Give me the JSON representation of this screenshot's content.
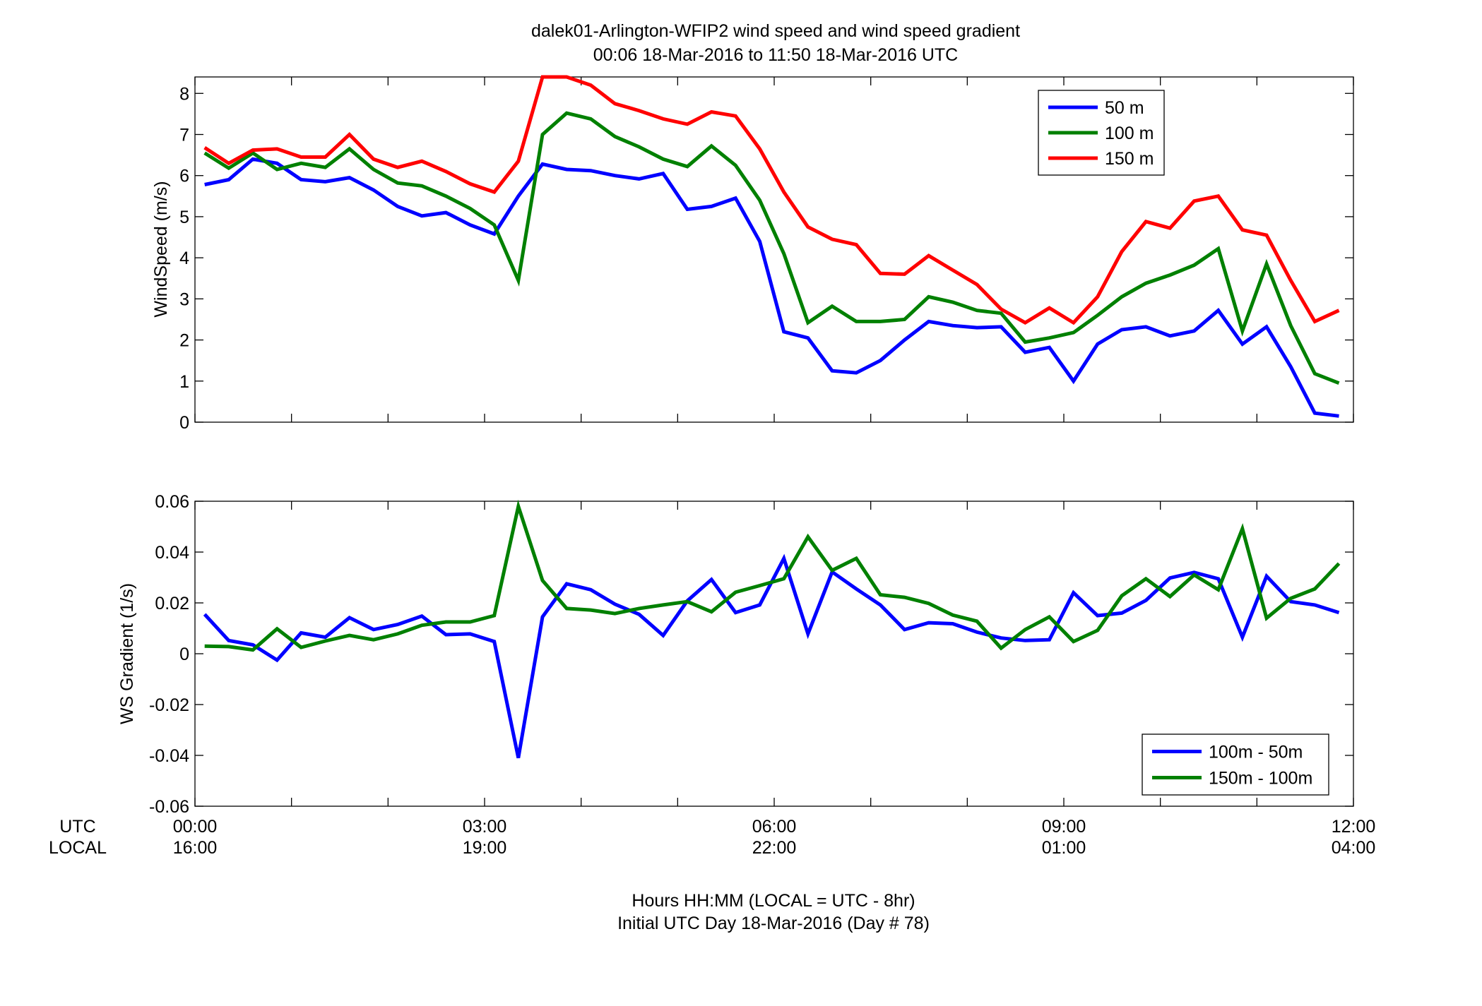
{
  "title_line1": "dalek01-Arlington-WFIP2  wind speed and wind speed gradient",
  "title_line2": "00:06 18-Mar-2016 to 11:50 18-Mar-2016  UTC",
  "row_label_utc": "UTC",
  "row_label_local": "LOCAL",
  "xlabel_line1": "Hours HH:MM  (LOCAL = UTC - 8hr)",
  "xlabel_line2": "Initial UTC Day 18-Mar-2016 (Day # 78)",
  "x_ticks": [
    {
      "hour": 0,
      "utc": "00:00",
      "local": "16:00"
    },
    {
      "hour": 3,
      "utc": "03:00",
      "local": "19:00"
    },
    {
      "hour": 6,
      "utc": "06:00",
      "local": "22:00"
    },
    {
      "hour": 9,
      "utc": "09:00",
      "local": "01:00"
    },
    {
      "hour": 12,
      "utc": "12:00",
      "local": "04:00"
    }
  ],
  "chart_data": [
    {
      "type": "line",
      "ylabel": "WindSpeed (m/s)",
      "xlim": [
        0,
        12
      ],
      "ylim": [
        0,
        8.4
      ],
      "y_ticks": [
        0,
        1,
        2,
        3,
        4,
        5,
        6,
        7,
        8
      ],
      "y_tick_labels": [
        "0",
        "1",
        "2",
        "3",
        "4",
        "5",
        "6",
        "7",
        "8"
      ],
      "legend_position": "top-right",
      "x": [
        0.1,
        0.35,
        0.6,
        0.85,
        1.1,
        1.35,
        1.6,
        1.85,
        2.1,
        2.35,
        2.6,
        2.85,
        3.1,
        3.35,
        3.6,
        3.85,
        4.1,
        4.35,
        4.6,
        4.85,
        5.1,
        5.35,
        5.6,
        5.85,
        6.1,
        6.35,
        6.6,
        6.85,
        7.1,
        7.35,
        7.6,
        7.85,
        8.1,
        8.35,
        8.6,
        8.85,
        9.1,
        9.35,
        9.6,
        9.85,
        10.1,
        10.35,
        10.6,
        10.85,
        11.1,
        11.35,
        11.6,
        11.85
      ],
      "series": [
        {
          "name": "50 m",
          "color": "#0000ff",
          "values": [
            5.78,
            5.9,
            6.4,
            6.3,
            5.9,
            5.85,
            5.95,
            5.65,
            5.25,
            5.02,
            5.1,
            4.8,
            4.58,
            5.5,
            6.28,
            6.15,
            6.12,
            6.0,
            5.92,
            6.05,
            5.18,
            5.25,
            5.45,
            4.4,
            2.2,
            2.05,
            1.25,
            1.2,
            1.5,
            2.0,
            2.45,
            2.35,
            2.3,
            2.32,
            1.7,
            1.82,
            1.0,
            1.9,
            2.25,
            2.32,
            2.1,
            2.22,
            2.72,
            1.9,
            2.32,
            1.35,
            0.22,
            0.15
          ]
        },
        {
          "name": "100 m",
          "color": "#008000",
          "values": [
            6.55,
            6.18,
            6.55,
            6.15,
            6.3,
            6.2,
            6.65,
            6.15,
            5.82,
            5.75,
            5.5,
            5.2,
            4.8,
            3.45,
            7.0,
            7.52,
            7.38,
            6.95,
            6.7,
            6.4,
            6.22,
            6.72,
            6.25,
            5.4,
            4.1,
            2.42,
            2.82,
            2.45,
            2.45,
            2.5,
            3.05,
            2.92,
            2.72,
            2.65,
            1.95,
            2.05,
            2.18,
            2.6,
            3.05,
            3.38,
            3.58,
            3.82,
            4.22,
            2.22,
            3.85,
            2.35,
            1.18,
            0.95
          ]
        },
        {
          "name": "150 m",
          "color": "#ff0000",
          "values": [
            6.68,
            6.3,
            6.62,
            6.65,
            6.45,
            6.45,
            7.0,
            6.4,
            6.2,
            6.35,
            6.1,
            5.8,
            5.6,
            6.35,
            8.4,
            8.4,
            8.2,
            7.75,
            7.58,
            7.38,
            7.25,
            7.55,
            7.45,
            6.65,
            5.6,
            4.75,
            4.45,
            4.32,
            3.62,
            3.6,
            4.05,
            3.7,
            3.35,
            2.75,
            2.42,
            2.78,
            2.42,
            3.05,
            4.15,
            4.88,
            4.72,
            5.38,
            5.5,
            4.68,
            4.55,
            3.45,
            2.45,
            2.72
          ]
        }
      ]
    },
    {
      "type": "line",
      "ylabel": "WS Gradient (1/s)",
      "xlim": [
        0,
        12
      ],
      "ylim": [
        -0.06,
        0.06
      ],
      "y_ticks": [
        -0.06,
        -0.04,
        -0.02,
        0,
        0.02,
        0.04,
        0.06
      ],
      "y_tick_labels": [
        "-0.06",
        "-0.04",
        "-0.02",
        "0",
        "0.02",
        "0.04",
        "0.06"
      ],
      "legend_position": "bottom-right",
      "x": [
        0.1,
        0.35,
        0.6,
        0.85,
        1.1,
        1.35,
        1.6,
        1.85,
        2.1,
        2.35,
        2.6,
        2.85,
        3.1,
        3.35,
        3.6,
        3.85,
        4.1,
        4.35,
        4.6,
        4.85,
        5.1,
        5.35,
        5.6,
        5.85,
        6.1,
        6.35,
        6.6,
        6.85,
        7.1,
        7.35,
        7.6,
        7.85,
        8.1,
        8.35,
        8.6,
        8.85,
        9.1,
        9.35,
        9.6,
        9.85,
        10.1,
        10.35,
        10.6,
        10.85,
        11.1,
        11.35,
        11.6,
        11.85
      ],
      "series": [
        {
          "name": "100m - 50m",
          "color": "#0000ff",
          "values": [
            0.0155,
            0.0052,
            0.0035,
            -0.0025,
            0.0082,
            0.0065,
            0.0142,
            0.0095,
            0.0115,
            0.0148,
            0.0075,
            0.0078,
            0.0048,
            -0.041,
            0.0145,
            0.0275,
            0.0252,
            0.0195,
            0.0155,
            0.0072,
            0.0208,
            0.0292,
            0.0162,
            0.0192,
            0.0375,
            0.0078,
            0.0322,
            0.0255,
            0.0192,
            0.0095,
            0.0122,
            0.0118,
            0.0085,
            0.0062,
            0.0052,
            0.0055,
            0.024,
            0.015,
            0.016,
            0.021,
            0.0298,
            0.032,
            0.0295,
            0.0065,
            0.0305,
            0.0205,
            0.0192,
            0.0162
          ]
        },
        {
          "name": "150m - 100m",
          "color": "#008000",
          "values": [
            0.003,
            0.0028,
            0.0015,
            0.0098,
            0.0025,
            0.005,
            0.0072,
            0.0055,
            0.0078,
            0.0112,
            0.0125,
            0.0125,
            0.015,
            0.058,
            0.0288,
            0.0178,
            0.0172,
            0.0158,
            0.0178,
            0.0192,
            0.0205,
            0.0165,
            0.0242,
            0.0268,
            0.0295,
            0.046,
            0.0328,
            0.0375,
            0.0232,
            0.0222,
            0.0198,
            0.0152,
            0.0128,
            0.0022,
            0.0095,
            0.0145,
            0.0048,
            0.0092,
            0.0228,
            0.0295,
            0.0225,
            0.031,
            0.0252,
            0.0492,
            0.014,
            0.0218,
            0.0255,
            0.0355
          ]
        }
      ]
    }
  ]
}
